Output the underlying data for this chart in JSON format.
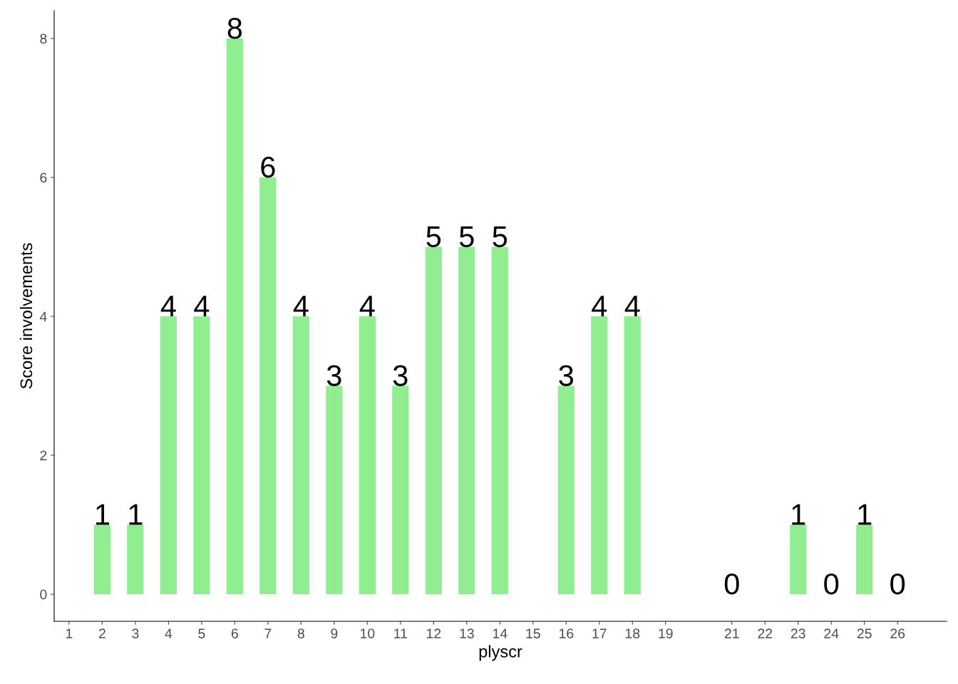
{
  "chart_data": {
    "type": "bar",
    "xlabel": "plyscr",
    "ylabel": "Score involvements",
    "x": [
      2,
      3,
      4,
      5,
      6,
      7,
      8,
      9,
      10,
      11,
      12,
      13,
      14,
      16,
      17,
      18,
      21,
      23,
      24,
      25,
      26
    ],
    "values": [
      1,
      1,
      4,
      4,
      8,
      6,
      4,
      3,
      4,
      3,
      5,
      5,
      5,
      3,
      4,
      4,
      0,
      1,
      0,
      1,
      0
    ],
    "color": "#90ee90",
    "data_labels": true,
    "grid": false,
    "legend": false,
    "xlim": [
      0.55,
      27.48
    ],
    "xticks": [
      1,
      2,
      3,
      4,
      5,
      6,
      7,
      8,
      9,
      10,
      11,
      12,
      13,
      14,
      15,
      16,
      17,
      18,
      19,
      21,
      22,
      23,
      24,
      25,
      26
    ],
    "ylim": [
      -0.39,
      8.4
    ],
    "yticks": [
      0,
      2,
      4,
      6,
      8
    ]
  }
}
